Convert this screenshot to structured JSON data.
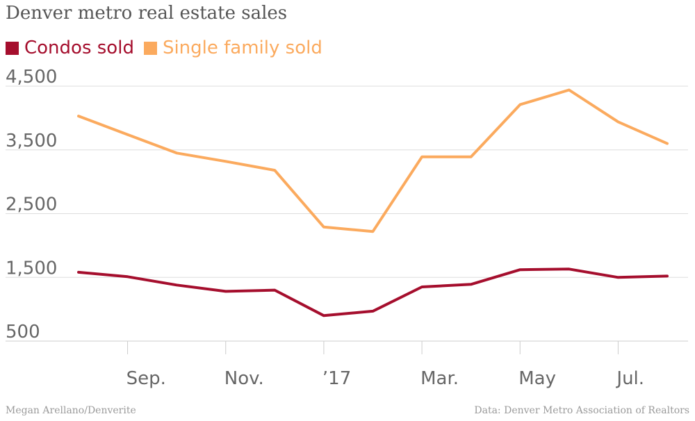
{
  "chart_data": {
    "type": "line",
    "title": "Denver metro real estate sales",
    "x": [
      "2016-08",
      "2016-09",
      "2016-10",
      "2016-11",
      "2016-12",
      "2017-01",
      "2017-02",
      "2017-03",
      "2017-04",
      "2017-05",
      "2017-06",
      "2017-07",
      "2017-08"
    ],
    "x_tick_labels": [
      "Sep.",
      "Nov.",
      "’17",
      "Mar.",
      "May",
      "Jul."
    ],
    "x_tick_positions": [
      "2016-09",
      "2016-11",
      "2017-01",
      "2017-03",
      "2017-05",
      "2017-07"
    ],
    "y_ticks": [
      500,
      1500,
      2500,
      3500,
      4500
    ],
    "y_tick_labels": [
      "500",
      "1,500",
      "2,500",
      "3,500",
      "4,500"
    ],
    "ylim": [
      500,
      4500
    ],
    "grid": true,
    "legend_position": "top-left",
    "series": [
      {
        "name": "Condos sold",
        "color": "#a50e2d",
        "values": [
          1580,
          1510,
          1380,
          1280,
          1300,
          900,
          970,
          1350,
          1390,
          1620,
          1630,
          1500,
          1520
        ]
      },
      {
        "name": "Single family sold",
        "color": "#fbaa5e",
        "values": [
          4030,
          3740,
          3450,
          3320,
          3180,
          2290,
          2220,
          3390,
          3390,
          4210,
          4440,
          3940,
          3600
        ]
      }
    ]
  },
  "footer": {
    "credit": "Megan Arellano/Denverite",
    "source": "Data: Denver Metro Association of Realtors"
  }
}
